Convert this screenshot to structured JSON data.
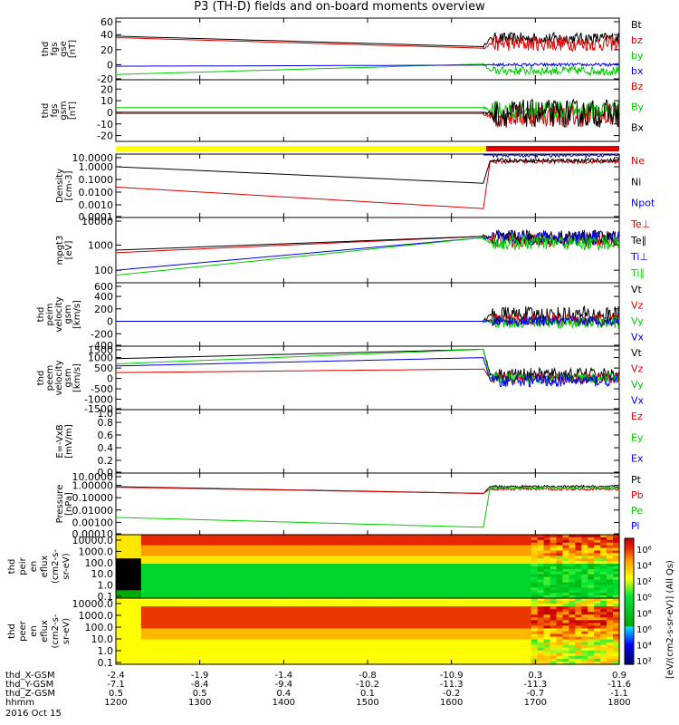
{
  "title": "P3 (TH-D) fields and on-board moments overview",
  "date": "2016 Oct 15",
  "colors": {
    "black": "#000000",
    "red": "#dd0000",
    "green": "#00cc00",
    "blue": "#0000dd",
    "yellow": "#ffff00"
  },
  "chart_data": {
    "type": "line",
    "x_range_hhmm": [
      "1200",
      "1800"
    ],
    "x_ticks": [
      "1200",
      "1300",
      "1400",
      "1500",
      "1600",
      "1700",
      "1800"
    ],
    "event_time_hhmm": "1645",
    "ephemeris": [
      {
        "label": "thd_X-GSM",
        "values": [
          "-2.4",
          "-1.9",
          "-1.4",
          "-0.8",
          "-10.9",
          "0.3",
          "0.9"
        ]
      },
      {
        "label": "thd_Y-GSM",
        "values": [
          "-7.1",
          "-8.4",
          "-9.4",
          "-10.2",
          "-11.3",
          "-11.3",
          "-11.6"
        ]
      },
      {
        "label": "thd_Z-GSM",
        "values": [
          "0.5",
          "0.5",
          "0.4",
          "0.1",
          "-0.2",
          "-0.7",
          "-1.1"
        ]
      },
      {
        "label": "hhmm",
        "values": [
          "1200",
          "1300",
          "1400",
          "1500",
          "1600",
          "1700",
          "1800"
        ]
      }
    ],
    "panels": [
      {
        "id": "fgs-gse",
        "ylabel": [
          "thd",
          "fgs",
          "gse",
          "[nT]"
        ],
        "scale": "linear",
        "yticks": [
          "60",
          "40",
          "20",
          "0",
          "-20"
        ],
        "yrange": [
          -20,
          62
        ],
        "series": [
          {
            "name": "Bt",
            "color": "black",
            "start": 38,
            "end": 24,
            "after": 35,
            "noise": 8
          },
          {
            "name": "bz",
            "color": "red",
            "start": 36,
            "end": 22,
            "after": 28,
            "noise": 10
          },
          {
            "name": "by",
            "color": "green",
            "start": -13,
            "end": 1,
            "after": -8,
            "noise": 6
          },
          {
            "name": "bx",
            "color": "blue",
            "start": -2,
            "end": -0.5,
            "after": 0,
            "noise": 2
          }
        ]
      },
      {
        "id": "fgs-gsm",
        "ylabel": [
          "thd",
          "fgs",
          "gsm",
          "[nT]"
        ],
        "scale": "linear",
        "yticks": [
          "20",
          "10",
          "0",
          "-10",
          "-20"
        ],
        "yrange": [
          -25,
          28
        ],
        "series": [
          {
            "name": "Bz",
            "color": "red",
            "start": -1,
            "end": -1,
            "after": -3,
            "noise": 10
          },
          {
            "name": "By",
            "color": "green",
            "start": 4,
            "end": 4,
            "after": 2,
            "noise": 8
          },
          {
            "name": "Bx",
            "color": "black",
            "start": 0,
            "end": 0,
            "after": -1,
            "noise": 12
          }
        ]
      },
      {
        "id": "density",
        "ylabel": [
          "Density",
          "[cm-3]"
        ],
        "scale": "log",
        "yticks": [
          "10.0000",
          "1.0000",
          "0.1000",
          "0.0100",
          "0.0010",
          "0.0001"
        ],
        "yrange": [
          -4,
          1
        ],
        "series": [
          {
            "name": "Ne",
            "color": "red",
            "start": -1.6,
            "end": -3.3,
            "after": 0.4,
            "noise": 0.15
          },
          {
            "name": "Ni",
            "color": "black",
            "start": 0,
            "end": -1.3,
            "after": 0.5,
            "noise": 0.15
          },
          {
            "name": "Npot",
            "color": "blue",
            "start": null,
            "end": null,
            "after": 1,
            "noise": 0.25
          }
        ]
      },
      {
        "id": "temperature",
        "ylabel": [
          "mpgt3",
          "[eV]"
        ],
        "scale": "log",
        "yticks": [
          "10000",
          "1000",
          "100"
        ],
        "yrange": [
          1.5,
          4.1
        ],
        "series": [
          {
            "name": "Te⊥",
            "color": "red",
            "start": 2.7,
            "end": 3.35,
            "after": 3.2,
            "noise": 0.3
          },
          {
            "name": "Te∥",
            "color": "black",
            "start": 2.8,
            "end": 3.35,
            "after": 3.3,
            "noise": 0.3
          },
          {
            "name": "Ti⊥",
            "color": "blue",
            "start": 2.0,
            "end": 3.3,
            "after": 3.3,
            "noise": 0.3
          },
          {
            "name": "Ti∥",
            "color": "green",
            "start": 1.8,
            "end": 3.3,
            "after": 3.1,
            "noise": 0.3
          }
        ]
      },
      {
        "id": "peim-velocity",
        "ylabel": [
          "thd",
          "peim",
          "velocity",
          "gsm",
          "[km/s]"
        ],
        "scale": "linear",
        "yticks": [
          "600",
          "400",
          "200",
          "0",
          "-200",
          "-400"
        ],
        "yrange": [
          -400,
          620
        ],
        "series": [
          {
            "name": "Vt",
            "color": "black",
            "start": 0,
            "end": 0,
            "after": 100,
            "noise": 140
          },
          {
            "name": "Vz",
            "color": "red",
            "start": 0,
            "end": 0,
            "after": 30,
            "noise": 90
          },
          {
            "name": "Vy",
            "color": "green",
            "start": 0,
            "end": 0,
            "after": -20,
            "noise": 90
          },
          {
            "name": "Vx",
            "color": "blue",
            "start": 0,
            "end": 0,
            "after": 0,
            "noise": 80
          }
        ]
      },
      {
        "id": "peem-velocity",
        "ylabel": [
          "thd",
          "peem",
          "velocity",
          "gsm",
          "[km/s]"
        ],
        "scale": "linear",
        "yticks": [
          "1500",
          "1000",
          "500",
          "0",
          "-500",
          "-1000",
          "-1500"
        ],
        "yrange": [
          -1500,
          1550
        ],
        "series": [
          {
            "name": "Vt",
            "color": "black",
            "start": 950,
            "end": 1400,
            "after": 200,
            "noise": 300
          },
          {
            "name": "Vz",
            "color": "red",
            "start": 280,
            "end": 450,
            "after": 0,
            "noise": 250
          },
          {
            "name": "Vy",
            "color": "green",
            "start": 700,
            "end": 1400,
            "after": 0,
            "noise": 250
          },
          {
            "name": "Vx",
            "color": "blue",
            "start": 600,
            "end": 1000,
            "after": -100,
            "noise": 300
          }
        ]
      },
      {
        "id": "e-field",
        "ylabel": [
          "E=-VxB",
          "[mV/m]"
        ],
        "scale": "linear",
        "yticks": [
          "1.0",
          "0.8",
          "0.6",
          "0.4",
          "0.2",
          "0.0"
        ],
        "yrange": [
          0,
          1
        ],
        "series": [
          {
            "name": "Ez",
            "color": "red",
            "start": null,
            "end": null,
            "after": null,
            "noise": 0
          },
          {
            "name": "Ey",
            "color": "green",
            "start": null,
            "end": null,
            "after": null,
            "noise": 0
          },
          {
            "name": "Ex",
            "color": "blue",
            "start": null,
            "end": null,
            "after": null,
            "noise": 0
          }
        ]
      },
      {
        "id": "pressure",
        "ylabel": [
          "Pressure",
          "[nPa]"
        ],
        "scale": "log",
        "yticks": [
          "10.0000",
          "1.00000",
          "0.10000",
          "0.01000",
          "0.00100",
          "0.00010"
        ],
        "yrange": [
          -4,
          1
        ],
        "series": [
          {
            "name": "Pt",
            "color": "black",
            "start": -0.1,
            "end": -0.65,
            "after": -0.1,
            "noise": 0.1
          },
          {
            "name": "Pb",
            "color": "red",
            "start": -0.15,
            "end": -0.65,
            "after": -0.3,
            "noise": 0.1
          },
          {
            "name": "Pe",
            "color": "green",
            "start": -2.6,
            "end": -3.4,
            "after": -0.2,
            "noise": 0.1
          },
          {
            "name": "Pi",
            "color": "blue",
            "start": null,
            "end": null,
            "after": null,
            "noise": 0
          }
        ]
      }
    ],
    "spectrograms": [
      {
        "id": "peir-spec",
        "ylabel": [
          "thd",
          "peir",
          "en",
          "eflux",
          "(cm2-s-",
          "sr-eV)"
        ],
        "yticks": [
          "10000.0",
          "1000.0",
          "100.0",
          "10.0",
          "1.0",
          "0.1"
        ]
      },
      {
        "id": "peer-spec",
        "ylabel": [
          "thd",
          "peer",
          "en",
          "eflux",
          "(cm2-s-",
          "sr-eV)"
        ],
        "yticks": [
          "10000.0",
          "1000.0",
          "100.0",
          "10.0",
          "1.0",
          "0.1"
        ]
      }
    ],
    "colorbar": {
      "label": "[eV/(cm2-s-sr-eV)] (All Qs)",
      "upper_ticks": [
        "10⁶",
        "10⁴",
        "10²",
        "10⁰"
      ],
      "lower_ticks": [
        "10⁸",
        "10⁶",
        "10⁴",
        "10²"
      ]
    }
  }
}
